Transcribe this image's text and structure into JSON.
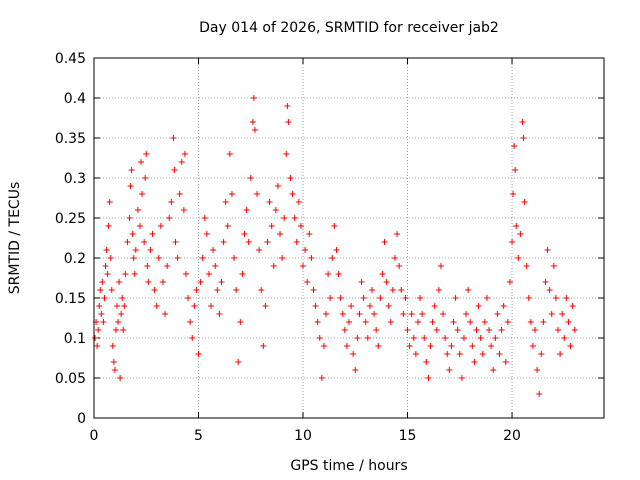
{
  "chart_data": {
    "type": "scatter",
    "title": "Day 014 of 2026, SRMTID for receiver jab2",
    "xlabel": "GPS time / hours",
    "ylabel": "SRMTID / TECUs",
    "xlim": [
      0,
      24.4
    ],
    "ylim": [
      0,
      0.45
    ],
    "xticks": [
      0,
      5,
      10,
      15,
      20
    ],
    "xtick_labels": [
      "0",
      "5",
      "10",
      "15",
      "20"
    ],
    "yticks": [
      0,
      0.05,
      0.1,
      0.15,
      0.2,
      0.25,
      0.3,
      0.35,
      0.4,
      0.45
    ],
    "ytick_labels": [
      "0",
      "0.05",
      "0.1",
      "0.15",
      "0.2",
      "0.25",
      "0.3",
      "0.35",
      "0.4",
      "0.45"
    ],
    "grid": true,
    "marker": "+",
    "color": "#ff0000",
    "series": [
      {
        "name": "SRMTID",
        "points": [
          [
            0.05,
            0.1
          ],
          [
            0.1,
            0.12
          ],
          [
            0.15,
            0.09
          ],
          [
            0.2,
            0.11
          ],
          [
            0.25,
            0.14
          ],
          [
            0.3,
            0.16
          ],
          [
            0.35,
            0.13
          ],
          [
            0.4,
            0.17
          ],
          [
            0.45,
            0.12
          ],
          [
            0.5,
            0.15
          ],
          [
            0.55,
            0.19
          ],
          [
            0.6,
            0.21
          ],
          [
            0.65,
            0.18
          ],
          [
            0.7,
            0.24
          ],
          [
            0.75,
            0.27
          ],
          [
            0.8,
            0.2
          ],
          [
            0.85,
            0.16
          ],
          [
            0.9,
            0.09
          ],
          [
            0.95,
            0.07
          ],
          [
            1.0,
            0.06
          ],
          [
            1.05,
            0.11
          ],
          [
            1.1,
            0.14
          ],
          [
            1.15,
            0.12
          ],
          [
            1.2,
            0.17
          ],
          [
            1.25,
            0.05
          ],
          [
            1.3,
            0.13
          ],
          [
            1.35,
            0.15
          ],
          [
            1.4,
            0.11
          ],
          [
            1.45,
            0.14
          ],
          [
            1.5,
            0.18
          ],
          [
            1.6,
            0.22
          ],
          [
            1.7,
            0.25
          ],
          [
            1.75,
            0.29
          ],
          [
            1.8,
            0.31
          ],
          [
            1.85,
            0.23
          ],
          [
            1.9,
            0.2
          ],
          [
            1.95,
            0.18
          ],
          [
            2.0,
            0.21
          ],
          [
            2.1,
            0.26
          ],
          [
            2.2,
            0.24
          ],
          [
            2.25,
            0.32
          ],
          [
            2.3,
            0.28
          ],
          [
            2.4,
            0.22
          ],
          [
            2.45,
            0.3
          ],
          [
            2.5,
            0.33
          ],
          [
            2.55,
            0.19
          ],
          [
            2.6,
            0.17
          ],
          [
            2.7,
            0.21
          ],
          [
            2.8,
            0.23
          ],
          [
            2.9,
            0.16
          ],
          [
            3.0,
            0.14
          ],
          [
            3.1,
            0.2
          ],
          [
            3.2,
            0.24
          ],
          [
            3.3,
            0.17
          ],
          [
            3.4,
            0.13
          ],
          [
            3.5,
            0.19
          ],
          [
            3.6,
            0.25
          ],
          [
            3.7,
            0.27
          ],
          [
            3.8,
            0.35
          ],
          [
            3.85,
            0.31
          ],
          [
            3.9,
            0.22
          ],
          [
            4.0,
            0.2
          ],
          [
            4.1,
            0.28
          ],
          [
            4.2,
            0.32
          ],
          [
            4.3,
            0.26
          ],
          [
            4.35,
            0.33
          ],
          [
            4.4,
            0.18
          ],
          [
            4.5,
            0.15
          ],
          [
            4.6,
            0.12
          ],
          [
            4.7,
            0.1
          ],
          [
            4.8,
            0.14
          ],
          [
            4.9,
            0.16
          ],
          [
            5.0,
            0.08
          ],
          [
            5.1,
            0.17
          ],
          [
            5.2,
            0.2
          ],
          [
            5.3,
            0.25
          ],
          [
            5.4,
            0.23
          ],
          [
            5.5,
            0.18
          ],
          [
            5.6,
            0.14
          ],
          [
            5.7,
            0.21
          ],
          [
            5.8,
            0.19
          ],
          [
            5.9,
            0.16
          ],
          [
            6.0,
            0.13
          ],
          [
            6.1,
            0.17
          ],
          [
            6.2,
            0.22
          ],
          [
            6.3,
            0.27
          ],
          [
            6.4,
            0.24
          ],
          [
            6.5,
            0.33
          ],
          [
            6.6,
            0.28
          ],
          [
            6.7,
            0.2
          ],
          [
            6.8,
            0.16
          ],
          [
            6.9,
            0.07
          ],
          [
            7.0,
            0.12
          ],
          [
            7.1,
            0.18
          ],
          [
            7.2,
            0.23
          ],
          [
            7.3,
            0.26
          ],
          [
            7.4,
            0.22
          ],
          [
            7.5,
            0.3
          ],
          [
            7.6,
            0.37
          ],
          [
            7.65,
            0.4
          ],
          [
            7.7,
            0.36
          ],
          [
            7.8,
            0.28
          ],
          [
            7.9,
            0.21
          ],
          [
            8.0,
            0.16
          ],
          [
            8.1,
            0.09
          ],
          [
            8.2,
            0.14
          ],
          [
            8.3,
            0.22
          ],
          [
            8.4,
            0.27
          ],
          [
            8.5,
            0.24
          ],
          [
            8.6,
            0.19
          ],
          [
            8.7,
            0.26
          ],
          [
            8.8,
            0.29
          ],
          [
            8.9,
            0.23
          ],
          [
            9.0,
            0.2
          ],
          [
            9.1,
            0.25
          ],
          [
            9.2,
            0.33
          ],
          [
            9.25,
            0.39
          ],
          [
            9.3,
            0.37
          ],
          [
            9.4,
            0.3
          ],
          [
            9.5,
            0.28
          ],
          [
            9.6,
            0.25
          ],
          [
            9.7,
            0.22
          ],
          [
            9.8,
            0.27
          ],
          [
            9.9,
            0.24
          ],
          [
            10.0,
            0.19
          ],
          [
            10.1,
            0.21
          ],
          [
            10.2,
            0.17
          ],
          [
            10.3,
            0.23
          ],
          [
            10.4,
            0.2
          ],
          [
            10.5,
            0.16
          ],
          [
            10.6,
            0.14
          ],
          [
            10.7,
            0.12
          ],
          [
            10.8,
            0.1
          ],
          [
            10.9,
            0.05
          ],
          [
            11.0,
            0.09
          ],
          [
            11.1,
            0.13
          ],
          [
            11.2,
            0.18
          ],
          [
            11.3,
            0.15
          ],
          [
            11.4,
            0.2
          ],
          [
            11.5,
            0.24
          ],
          [
            11.6,
            0.21
          ],
          [
            11.7,
            0.18
          ],
          [
            11.8,
            0.15
          ],
          [
            11.9,
            0.13
          ],
          [
            12.0,
            0.11
          ],
          [
            12.1,
            0.09
          ],
          [
            12.2,
            0.12
          ],
          [
            12.3,
            0.14
          ],
          [
            12.4,
            0.08
          ],
          [
            12.5,
            0.06
          ],
          [
            12.6,
            0.1
          ],
          [
            12.7,
            0.13
          ],
          [
            12.8,
            0.17
          ],
          [
            12.9,
            0.15
          ],
          [
            13.0,
            0.12
          ],
          [
            13.1,
            0.1
          ],
          [
            13.2,
            0.14
          ],
          [
            13.3,
            0.16
          ],
          [
            13.4,
            0.13
          ],
          [
            13.5,
            0.11
          ],
          [
            13.6,
            0.09
          ],
          [
            13.7,
            0.15
          ],
          [
            13.8,
            0.18
          ],
          [
            13.9,
            0.22
          ],
          [
            14.0,
            0.17
          ],
          [
            14.1,
            0.14
          ],
          [
            14.2,
            0.12
          ],
          [
            14.3,
            0.16
          ],
          [
            14.4,
            0.2
          ],
          [
            14.5,
            0.23
          ],
          [
            14.6,
            0.19
          ],
          [
            14.7,
            0.16
          ],
          [
            14.8,
            0.13
          ],
          [
            14.9,
            0.15
          ],
          [
            15.0,
            0.11
          ],
          [
            15.1,
            0.09
          ],
          [
            15.2,
            0.13
          ],
          [
            15.3,
            0.1
          ],
          [
            15.4,
            0.08
          ],
          [
            15.5,
            0.12
          ],
          [
            15.6,
            0.15
          ],
          [
            15.7,
            0.13
          ],
          [
            15.8,
            0.1
          ],
          [
            15.9,
            0.07
          ],
          [
            16.0,
            0.05
          ],
          [
            16.1,
            0.09
          ],
          [
            16.2,
            0.12
          ],
          [
            16.3,
            0.14
          ],
          [
            16.4,
            0.11
          ],
          [
            16.5,
            0.16
          ],
          [
            16.6,
            0.19
          ],
          [
            16.7,
            0.13
          ],
          [
            16.8,
            0.1
          ],
          [
            16.9,
            0.08
          ],
          [
            17.0,
            0.06
          ],
          [
            17.1,
            0.09
          ],
          [
            17.2,
            0.12
          ],
          [
            17.3,
            0.15
          ],
          [
            17.4,
            0.11
          ],
          [
            17.5,
            0.08
          ],
          [
            17.6,
            0.05
          ],
          [
            17.7,
            0.1
          ],
          [
            17.8,
            0.13
          ],
          [
            17.9,
            0.16
          ],
          [
            18.0,
            0.12
          ],
          [
            18.1,
            0.09
          ],
          [
            18.2,
            0.07
          ],
          [
            18.3,
            0.11
          ],
          [
            18.4,
            0.14
          ],
          [
            18.5,
            0.1
          ],
          [
            18.6,
            0.08
          ],
          [
            18.7,
            0.12
          ],
          [
            18.8,
            0.15
          ],
          [
            18.9,
            0.11
          ],
          [
            19.0,
            0.09
          ],
          [
            19.1,
            0.06
          ],
          [
            19.2,
            0.1
          ],
          [
            19.3,
            0.13
          ],
          [
            19.4,
            0.08
          ],
          [
            19.5,
            0.11
          ],
          [
            19.6,
            0.14
          ],
          [
            19.7,
            0.07
          ],
          [
            19.8,
            0.12
          ],
          [
            19.9,
            0.17
          ],
          [
            20.0,
            0.22
          ],
          [
            20.05,
            0.28
          ],
          [
            20.1,
            0.34
          ],
          [
            20.15,
            0.31
          ],
          [
            20.2,
            0.24
          ],
          [
            20.3,
            0.2
          ],
          [
            20.4,
            0.23
          ],
          [
            20.5,
            0.37
          ],
          [
            20.55,
            0.35
          ],
          [
            20.6,
            0.27
          ],
          [
            20.7,
            0.19
          ],
          [
            20.8,
            0.15
          ],
          [
            20.9,
            0.12
          ],
          [
            21.0,
            0.09
          ],
          [
            21.1,
            0.11
          ],
          [
            21.2,
            0.06
          ],
          [
            21.3,
            0.03
          ],
          [
            21.4,
            0.08
          ],
          [
            21.5,
            0.12
          ],
          [
            21.6,
            0.17
          ],
          [
            21.7,
            0.21
          ],
          [
            21.8,
            0.16
          ],
          [
            21.9,
            0.13
          ],
          [
            22.0,
            0.19
          ],
          [
            22.1,
            0.15
          ],
          [
            22.2,
            0.11
          ],
          [
            22.3,
            0.08
          ],
          [
            22.4,
            0.13
          ],
          [
            22.5,
            0.1
          ],
          [
            22.6,
            0.15
          ],
          [
            22.7,
            0.12
          ],
          [
            22.8,
            0.09
          ],
          [
            22.9,
            0.14
          ],
          [
            23.0,
            0.11
          ]
        ]
      }
    ]
  }
}
